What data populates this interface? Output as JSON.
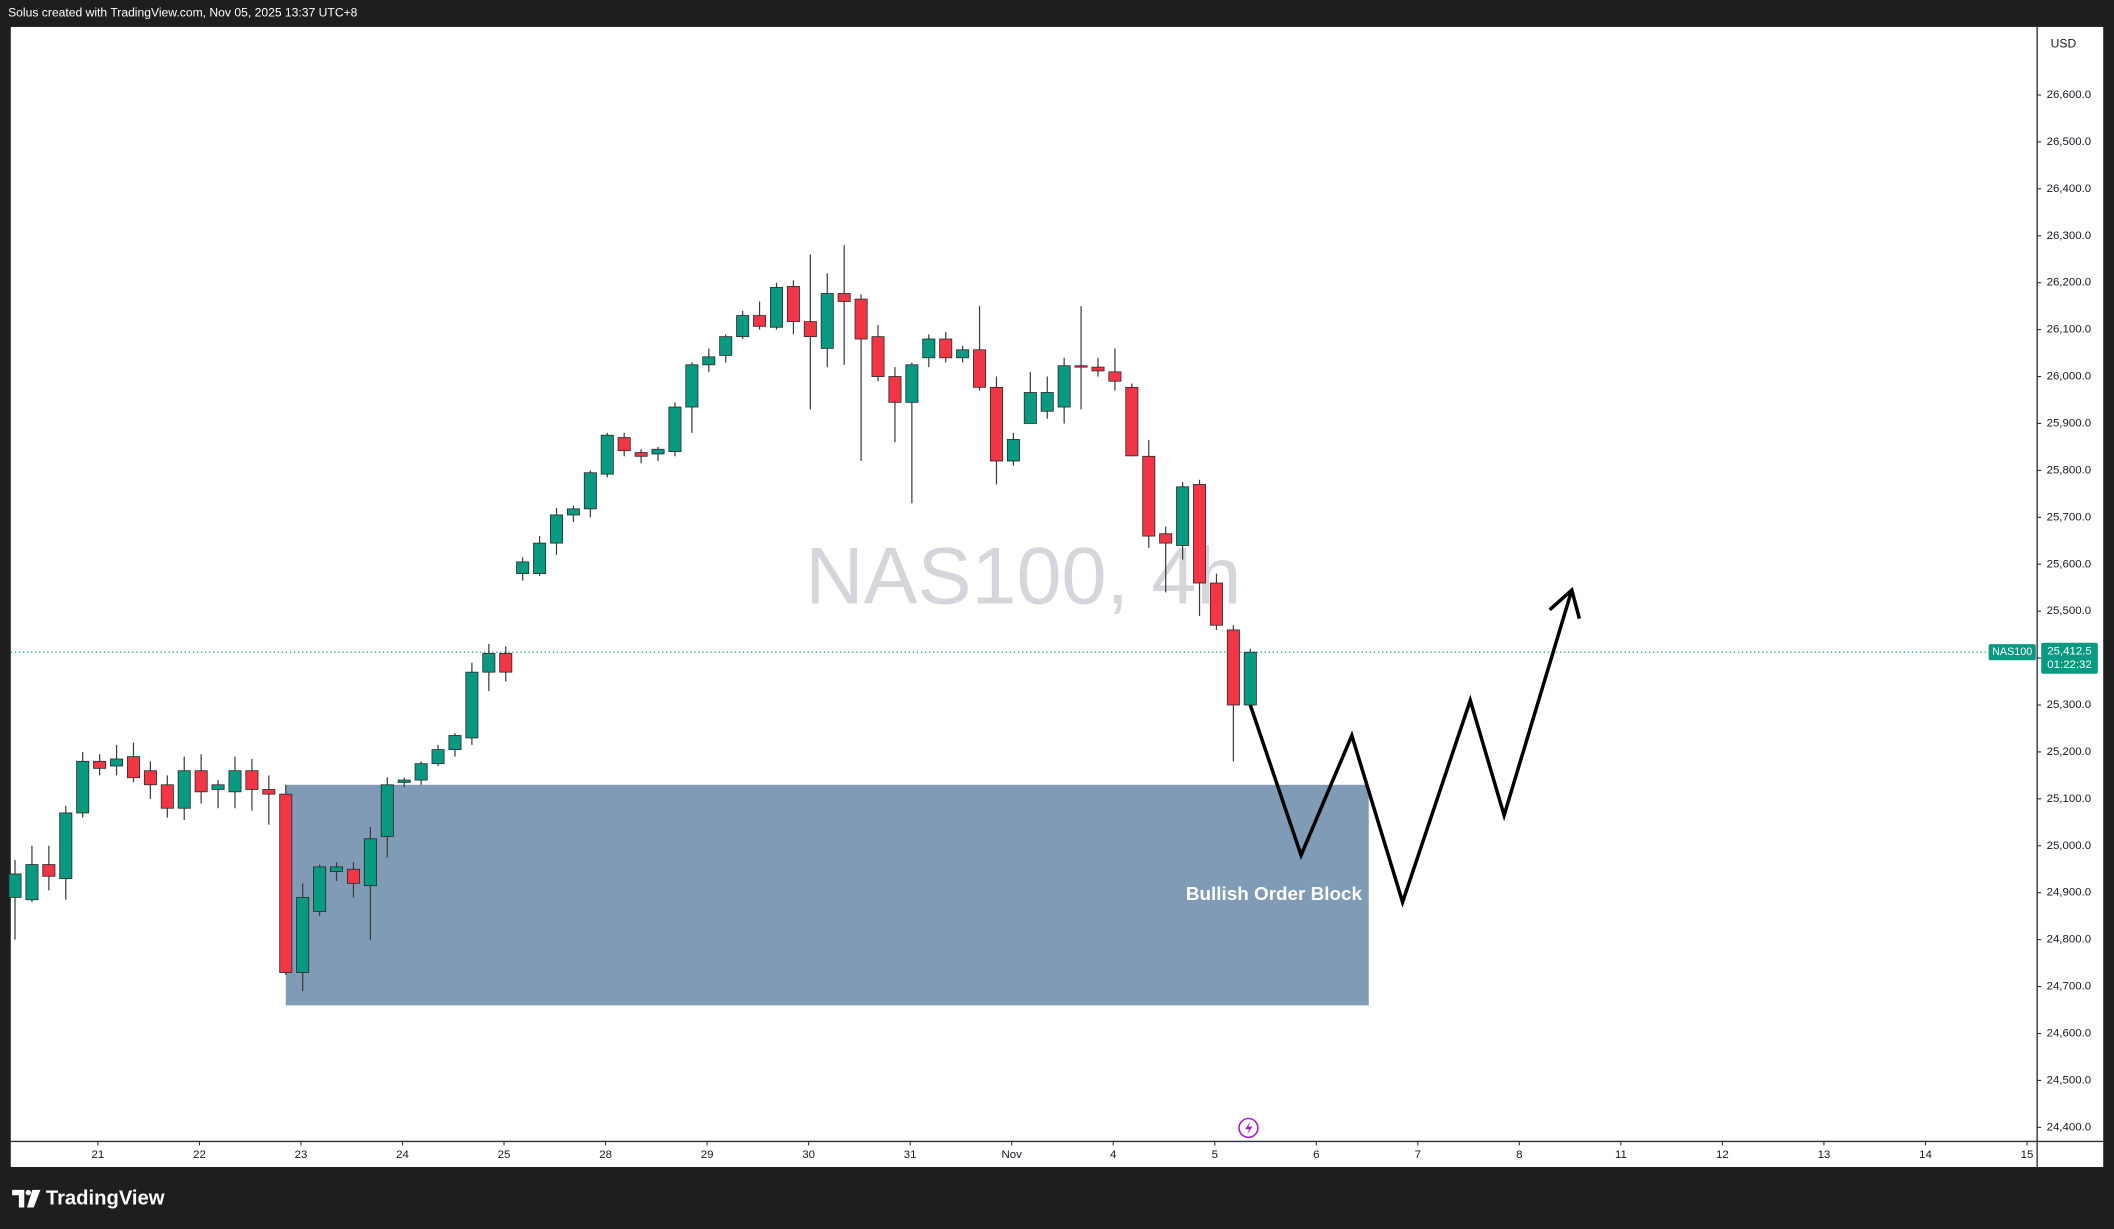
{
  "chart_data": {
    "type": "candlestick",
    "header": "Solus created with TradingView.com, Nov 05, 2025 13:37 UTC+8",
    "watermark": "NAS100, 4h",
    "currency": "USD",
    "symbol": "NAS100",
    "last_price": {
      "value": 25412.5,
      "label": "25,412.5"
    },
    "countdown": "01:22:32",
    "brand": "TradingView",
    "up_color": "#089981",
    "down_color": "#f23645",
    "grid": false,
    "open": [
      24890,
      24885,
      24960,
      24930,
      25070,
      25180,
      25170,
      25190,
      25160,
      25130,
      25080,
      25160,
      25120,
      25115,
      25160,
      25120,
      25110,
      24730,
      24860,
      24945,
      24950,
      24915,
      25020,
      25135,
      25140,
      25175,
      25205,
      25230,
      25370,
      25410,
      25580,
      25580,
      25645,
      25705,
      25718,
      25792,
      25870,
      25838,
      25835,
      25840,
      25935,
      26025,
      26045,
      26085,
      26130,
      26105,
      26192,
      26117,
      26060,
      26177,
      26165,
      26085,
      26000,
      25945,
      26040,
      26080,
      26040,
      26057,
      25977,
      25820,
      25900,
      25926,
      25935,
      26023,
      26020,
      26010,
      25977,
      25830,
      25665,
      25640,
      25770,
      25560,
      25460,
      25300
    ],
    "high": [
      24970,
      25000,
      25000,
      25085,
      25200,
      25195,
      25215,
      25220,
      25180,
      25150,
      25190,
      25195,
      25140,
      25190,
      25185,
      25150,
      25130,
      24920,
      24960,
      24965,
      24965,
      25040,
      25146,
      25145,
      25180,
      25215,
      25240,
      25390,
      25430,
      25425,
      25615,
      25660,
      25720,
      25725,
      25800,
      25880,
      25880,
      25845,
      25850,
      25945,
      26030,
      26060,
      26090,
      26140,
      26160,
      26200,
      26205,
      26260,
      26220,
      26280,
      26175,
      26110,
      26020,
      26030,
      26090,
      26095,
      26065,
      26150,
      26000,
      25880,
      26010,
      26000,
      26040,
      26150,
      26040,
      26060,
      25985,
      25865,
      25680,
      25775,
      25780,
      25580,
      25470,
      25420
    ],
    "low": [
      24800,
      24880,
      24905,
      24885,
      25060,
      25150,
      25150,
      25135,
      25100,
      25060,
      25055,
      25090,
      25080,
      25080,
      25075,
      25045,
      24725,
      24690,
      24850,
      24925,
      24890,
      24800,
      24975,
      25125,
      25130,
      25170,
      25190,
      25215,
      25330,
      25350,
      25565,
      25575,
      25620,
      25690,
      25700,
      25785,
      25830,
      25815,
      25820,
      25830,
      25880,
      26010,
      26030,
      26080,
      26100,
      26100,
      26090,
      25930,
      26020,
      26025,
      25820,
      25990,
      25860,
      25730,
      26020,
      26030,
      26030,
      25970,
      25770,
      25810,
      25900,
      25910,
      25900,
      25930,
      26000,
      25970,
      25830,
      25635,
      25540,
      25610,
      25490,
      25460,
      25180,
      25290
    ],
    "close": [
      24940,
      24960,
      24935,
      25070,
      25180,
      25165,
      25185,
      25145,
      25130,
      25080,
      25160,
      25115,
      25130,
      25160,
      25120,
      25110,
      24730,
      24890,
      24955,
      24955,
      24920,
      25015,
      25130,
      25140,
      25175,
      25205,
      25235,
      25370,
      25410,
      25370,
      25605,
      25645,
      25705,
      25718,
      25795,
      25875,
      25842,
      25830,
      25845,
      25935,
      26025,
      26042,
      26085,
      26130,
      26107,
      26190,
      26117,
      26085,
      26177,
      26160,
      26080,
      26000,
      25945,
      26025,
      26080,
      26040,
      26057,
      25977,
      25820,
      25866,
      25966,
      25966,
      26023,
      26020,
      26012,
      25990,
      25831,
      25660,
      25645,
      25765,
      25560,
      25470,
      25300,
      25412.5
    ],
    "xlim": [
      -0.25,
      119.5
    ],
    "ylim": [
      24370,
      26745
    ],
    "xticks": [
      {
        "value": 4.9,
        "label": "21"
      },
      {
        "value": 10.9,
        "label": "22"
      },
      {
        "value": 16.9,
        "label": "23"
      },
      {
        "value": 22.9,
        "label": "24"
      },
      {
        "value": 28.9,
        "label": "25"
      },
      {
        "value": 34.9,
        "label": "28"
      },
      {
        "value": 40.9,
        "label": "29"
      },
      {
        "value": 46.9,
        "label": "30"
      },
      {
        "value": 52.9,
        "label": "31"
      },
      {
        "value": 58.9,
        "label": "Nov"
      },
      {
        "value": 64.9,
        "label": "4"
      },
      {
        "value": 70.9,
        "label": "5"
      },
      {
        "value": 76.9,
        "label": "6"
      },
      {
        "value": 82.9,
        "label": "7"
      },
      {
        "value": 88.9,
        "label": "8"
      },
      {
        "value": 94.9,
        "label": "11"
      },
      {
        "value": 100.9,
        "label": "12"
      },
      {
        "value": 106.9,
        "label": "13"
      },
      {
        "value": 112.9,
        "label": "14"
      },
      {
        "value": 118.9,
        "label": "15"
      }
    ],
    "yticks": [
      {
        "value": 24400,
        "label": "24,400.0"
      },
      {
        "value": 24500,
        "label": "24,500.0"
      },
      {
        "value": 24600,
        "label": "24,600.0"
      },
      {
        "value": 24700,
        "label": "24,700.0"
      },
      {
        "value": 24800,
        "label": "24,800.0"
      },
      {
        "value": 24900,
        "label": "24,900.0"
      },
      {
        "value": 25000,
        "label": "25,000.0"
      },
      {
        "value": 25100,
        "label": "25,100.0"
      },
      {
        "value": 25200,
        "label": "25,200.0"
      },
      {
        "value": 25300,
        "label": "25,300.0"
      },
      {
        "value": 25400,
        "label": "25,400.0"
      },
      {
        "value": 25500,
        "label": "25,500.0"
      },
      {
        "value": 25600,
        "label": "25,600.0"
      },
      {
        "value": 25700,
        "label": "25,700.0"
      },
      {
        "value": 25800,
        "label": "25,800.0"
      },
      {
        "value": 25900,
        "label": "25,900.0"
      },
      {
        "value": 26000,
        "label": "26,000.0"
      },
      {
        "value": 26100,
        "label": "26,100.0"
      },
      {
        "value": 26200,
        "label": "26,200.0"
      },
      {
        "value": 26300,
        "label": "26,300.0"
      },
      {
        "value": 26400,
        "label": "26,400.0"
      },
      {
        "value": 26500,
        "label": "26,500.0"
      },
      {
        "value": 26600,
        "label": "26,600.0"
      }
    ],
    "order_block": {
      "label": "Bullish Order Block",
      "color": "#7f9bb5",
      "x": [
        16,
        80
      ],
      "y": [
        24660,
        25130
      ]
    },
    "projection": {
      "color": "#000000",
      "x": [
        73,
        76,
        79,
        82,
        86,
        88,
        92
      ],
      "y": [
        25300,
        24980,
        25235,
        24880,
        25310,
        25065,
        25545
      ]
    }
  }
}
